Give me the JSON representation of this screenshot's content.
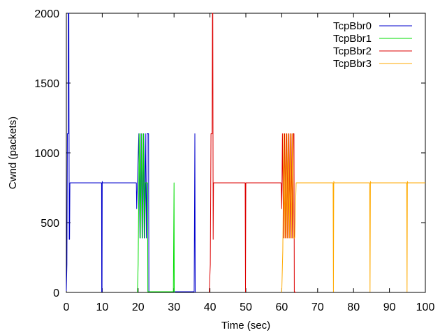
{
  "chart_data": {
    "type": "line",
    "title": "",
    "xlabel": "Time (sec)",
    "ylabel": "Cwnd (packets)",
    "xlim": [
      0,
      100
    ],
    "ylim": [
      0,
      2000
    ],
    "xticks": [
      0,
      10,
      20,
      30,
      40,
      50,
      60,
      70,
      80,
      90,
      100
    ],
    "yticks": [
      0,
      500,
      1000,
      1500,
      2000
    ],
    "grid": false,
    "legend_position": "top-right",
    "series": [
      {
        "name": "TcpBbr0",
        "color": "#0000cc",
        "points": [
          [
            0,
            10
          ],
          [
            0.15,
            200
          ],
          [
            0.3,
            1137
          ],
          [
            0.5,
            1137
          ],
          [
            0.55,
            2000
          ],
          [
            0.7,
            2000
          ],
          [
            0.8,
            380
          ],
          [
            0.9,
            380
          ],
          [
            1.0,
            785
          ],
          [
            9.8,
            785
          ],
          [
            9.85,
            5
          ],
          [
            9.95,
            5
          ],
          [
            10.0,
            795
          ],
          [
            10.05,
            785
          ],
          [
            19.5,
            785
          ],
          [
            19.6,
            600
          ],
          [
            20.2,
            1137
          ],
          [
            20.5,
            390
          ],
          [
            20.8,
            1137
          ],
          [
            21.1,
            390
          ],
          [
            21.4,
            1137
          ],
          [
            21.7,
            390
          ],
          [
            22.0,
            1137
          ],
          [
            22.3,
            390
          ],
          [
            22.5,
            1137
          ],
          [
            22.9,
            1137
          ],
          [
            23.0,
            5
          ],
          [
            25.5,
            5
          ],
          [
            35.6,
            5
          ],
          [
            35.8,
            1137
          ],
          [
            35.9,
            5
          ],
          [
            36.0,
            0
          ]
        ]
      },
      {
        "name": "TcpBbr1",
        "color": "#00dd00",
        "points": [
          [
            19.8,
            0
          ],
          [
            20.0,
            200
          ],
          [
            20.3,
            1137
          ],
          [
            20.6,
            390
          ],
          [
            20.9,
            1137
          ],
          [
            21.2,
            390
          ],
          [
            21.5,
            1137
          ],
          [
            21.8,
            390
          ],
          [
            22.0,
            785
          ],
          [
            22.5,
            785
          ],
          [
            22.6,
            785
          ],
          [
            22.7,
            5
          ],
          [
            29.8,
            5
          ],
          [
            30.0,
            785
          ],
          [
            30.05,
            5
          ],
          [
            30.2,
            0
          ]
        ]
      },
      {
        "name": "TcpBbr2",
        "color": "#dd0000",
        "points": [
          [
            39.8,
            0
          ],
          [
            40.1,
            200
          ],
          [
            40.3,
            1137
          ],
          [
            40.6,
            1137
          ],
          [
            40.7,
            2000
          ],
          [
            40.8,
            2000
          ],
          [
            40.9,
            380
          ],
          [
            41.0,
            785
          ],
          [
            49.8,
            785
          ],
          [
            49.9,
            5
          ],
          [
            50.0,
            785
          ],
          [
            50.2,
            785
          ],
          [
            59.8,
            785
          ],
          [
            60.0,
            600
          ],
          [
            60.2,
            1137
          ],
          [
            60.5,
            390
          ],
          [
            60.8,
            1137
          ],
          [
            61.1,
            390
          ],
          [
            61.4,
            1137
          ],
          [
            61.7,
            390
          ],
          [
            62.0,
            1137
          ],
          [
            62.3,
            390
          ],
          [
            62.6,
            1137
          ],
          [
            62.9,
            390
          ],
          [
            63.2,
            1137
          ],
          [
            63.4,
            1137
          ],
          [
            63.5,
            5
          ],
          [
            64.0,
            0
          ]
        ]
      },
      {
        "name": "TcpBbr3",
        "color": "#ffaa00",
        "points": [
          [
            60.0,
            0
          ],
          [
            60.3,
            300
          ],
          [
            60.6,
            1137
          ],
          [
            60.9,
            390
          ],
          [
            61.2,
            1137
          ],
          [
            61.5,
            390
          ],
          [
            61.8,
            1137
          ],
          [
            62.1,
            390
          ],
          [
            62.4,
            1137
          ],
          [
            62.7,
            390
          ],
          [
            63.0,
            1137
          ],
          [
            63.3,
            390
          ],
          [
            63.6,
            390
          ],
          [
            64.0,
            785
          ],
          [
            74.3,
            785
          ],
          [
            74.4,
            5
          ],
          [
            74.5,
            795
          ],
          [
            74.6,
            785
          ],
          [
            84.5,
            785
          ],
          [
            84.6,
            5
          ],
          [
            84.7,
            795
          ],
          [
            84.8,
            785
          ],
          [
            94.8,
            785
          ],
          [
            94.9,
            5
          ],
          [
            95.0,
            795
          ],
          [
            95.1,
            785
          ],
          [
            100,
            785
          ]
        ]
      }
    ]
  }
}
